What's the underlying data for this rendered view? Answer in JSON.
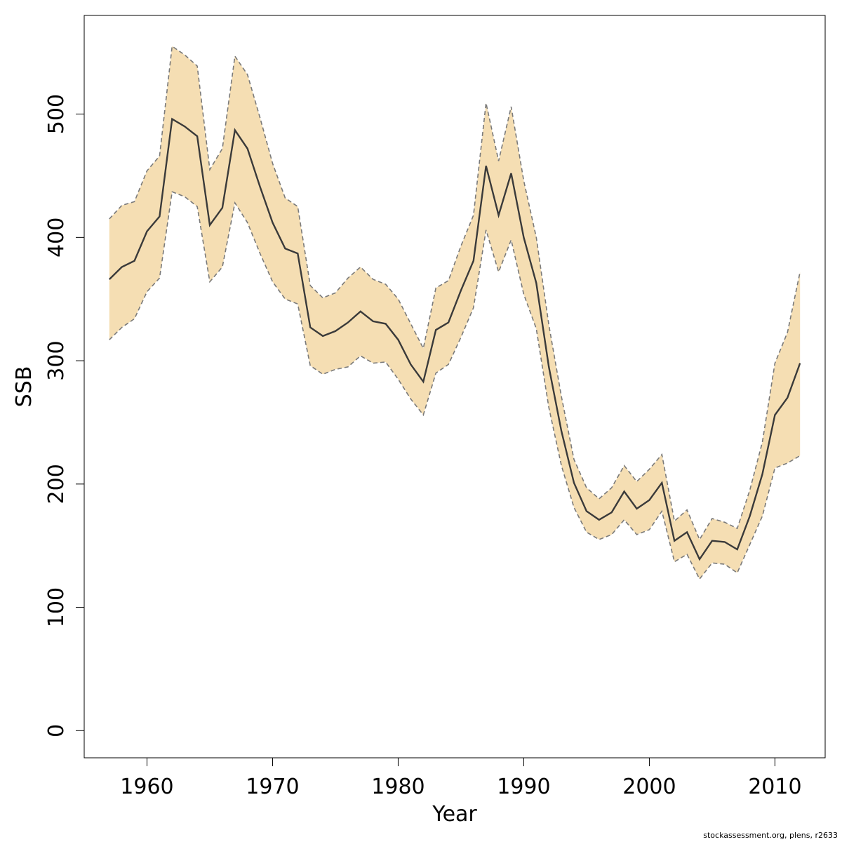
{
  "footer": "stockassessment.org, plens, r2633",
  "colors": {
    "band": "#F5DEB3",
    "line": "#3a3a3a",
    "band_edge": "#7a7a7a",
    "axis": "#000000"
  },
  "chart_data": {
    "type": "area",
    "title": "",
    "xlabel": "Year",
    "ylabel": "SSB",
    "xlim": [
      1955,
      2014
    ],
    "ylim": [
      -22,
      580
    ],
    "x_ticks": [
      1960,
      1970,
      1980,
      1990,
      2000,
      2010
    ],
    "y_ticks": [
      0,
      100,
      200,
      300,
      400,
      500
    ],
    "grid": false,
    "legend": "none",
    "x": [
      1957,
      1958,
      1959,
      1960,
      1961,
      1962,
      1963,
      1964,
      1965,
      1966,
      1967,
      1968,
      1969,
      1970,
      1971,
      1972,
      1973,
      1974,
      1975,
      1976,
      1977,
      1978,
      1979,
      1980,
      1981,
      1982,
      1983,
      1984,
      1985,
      1986,
      1987,
      1988,
      1989,
      1990,
      1991,
      1992,
      1993,
      1994,
      1995,
      1996,
      1997,
      1998,
      1999,
      2000,
      2001,
      2002,
      2003,
      2004,
      2005,
      2006,
      2007,
      2008,
      2009,
      2010,
      2011,
      2012
    ],
    "series": [
      {
        "role": "estimate",
        "values": [
          366,
          376,
          381,
          405,
          417,
          496,
          490,
          482,
          410,
          424,
          487,
          472,
          441,
          412,
          391,
          387,
          327,
          320,
          324,
          331,
          340,
          332,
          330,
          317,
          297,
          283,
          325,
          331,
          357,
          381,
          458,
          418,
          452,
          400,
          363,
          295,
          243,
          201,
          178,
          171,
          177,
          194,
          180,
          187,
          201,
          154,
          161,
          139,
          154,
          153,
          147,
          174,
          208,
          256,
          270,
          298
        ]
      },
      {
        "role": "upper",
        "values": [
          415,
          426,
          429,
          454,
          466,
          555,
          548,
          539,
          455,
          472,
          547,
          532,
          497,
          460,
          432,
          425,
          361,
          351,
          355,
          367,
          376,
          366,
          362,
          350,
          330,
          310,
          359,
          365,
          393,
          418,
          509,
          462,
          506,
          446,
          400,
          329,
          271,
          220,
          197,
          188,
          197,
          215,
          202,
          212,
          224,
          170,
          179,
          155,
          172,
          169,
          164,
          195,
          234,
          298,
          323,
          372
        ]
      },
      {
        "role": "lower",
        "values": [
          317,
          327,
          334,
          356,
          367,
          437,
          433,
          425,
          364,
          376,
          428,
          412,
          387,
          364,
          350,
          346,
          296,
          289,
          293,
          295,
          304,
          298,
          299,
          285,
          269,
          256,
          290,
          297,
          319,
          343,
          406,
          372,
          398,
          354,
          326,
          262,
          215,
          181,
          161,
          155,
          159,
          171,
          159,
          163,
          178,
          137,
          143,
          123,
          136,
          135,
          128,
          151,
          174,
          213,
          217,
          223
        ]
      }
    ]
  }
}
